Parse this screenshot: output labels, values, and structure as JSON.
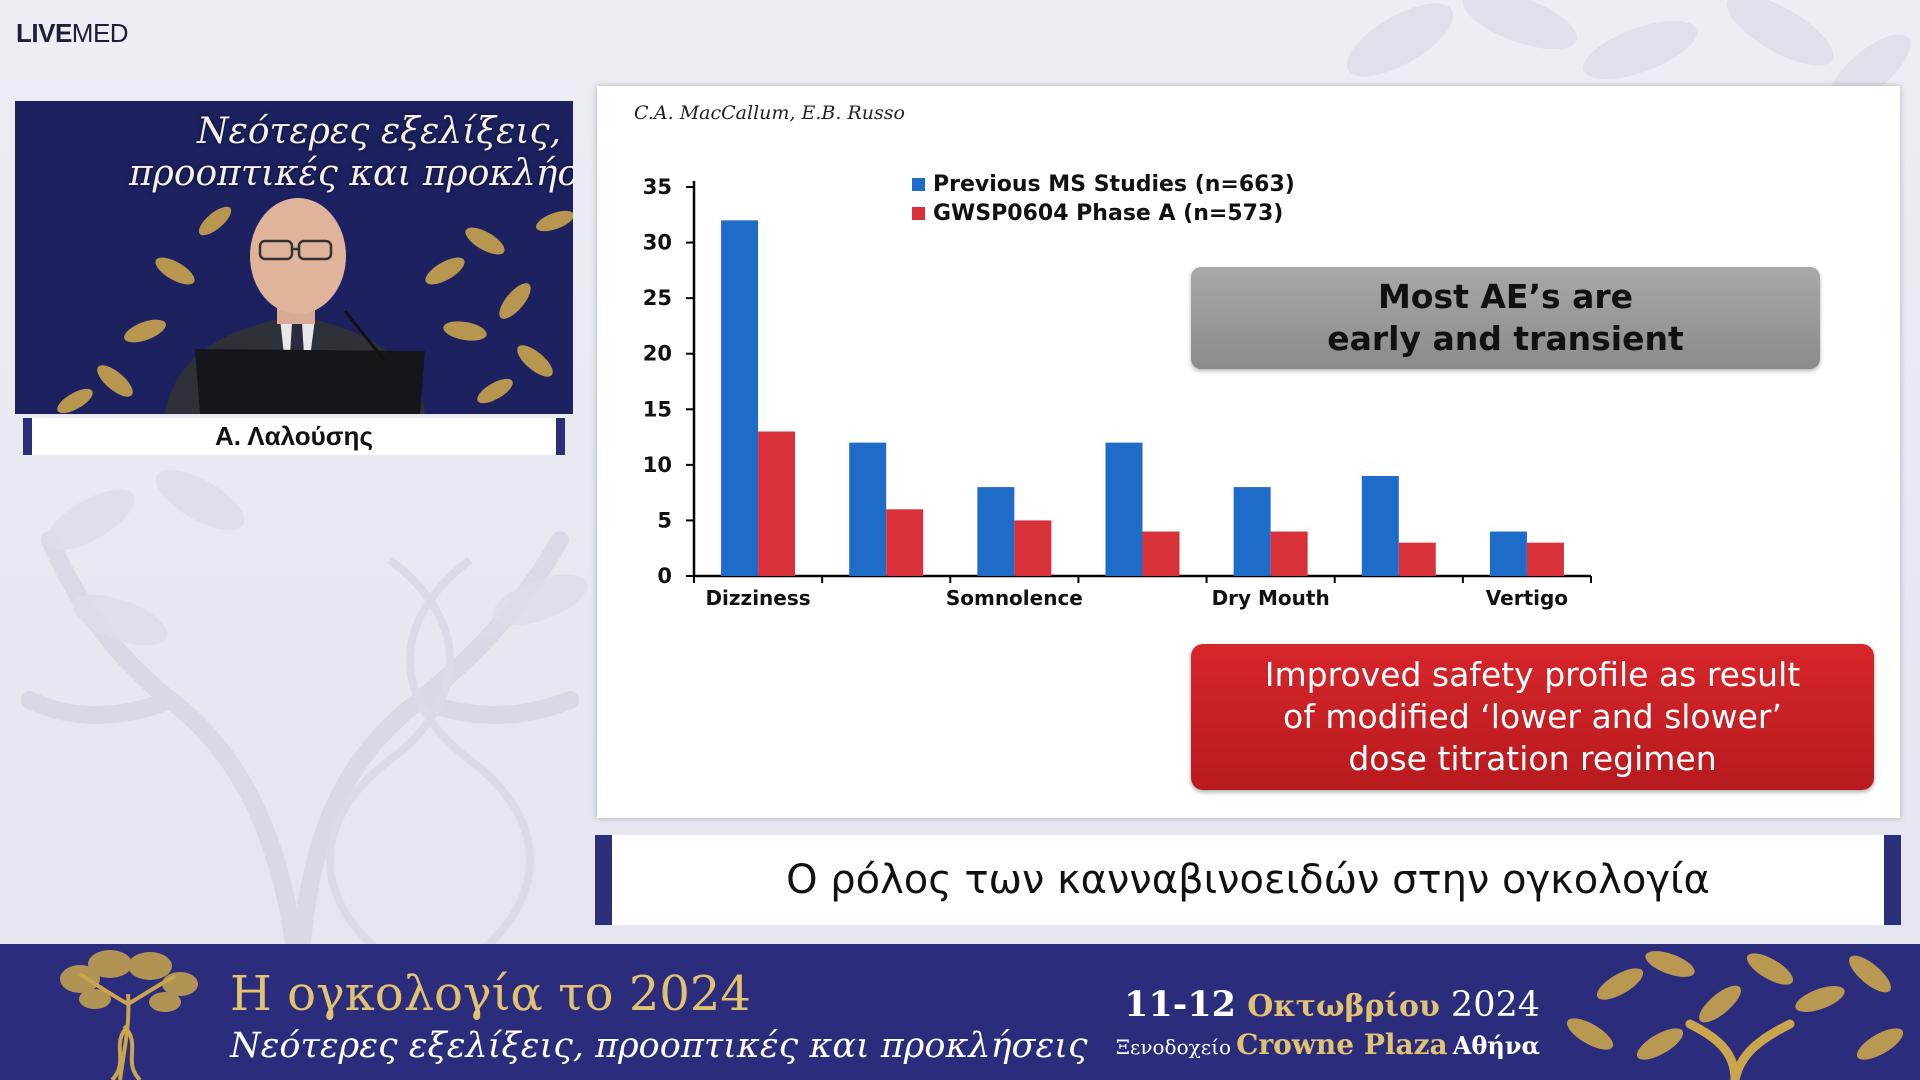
{
  "logo": {
    "live": "LIVE",
    "med": "MED"
  },
  "video": {
    "line1": "Νεότερες εξελίξεις,",
    "line2": "προοπτικές και προκλήσεις"
  },
  "speaker": {
    "name": "Α. Λαλούσης"
  },
  "slide": {
    "author": "C.A. MacCallum, E.B. Russo",
    "callout_gray": [
      "Most AE’s are",
      "early and transient"
    ],
    "callout_red": [
      "Improved safety profile as result",
      "of modified ‘lower and slower’",
      "dose titration regimen"
    ]
  },
  "chart_data": {
    "type": "bar",
    "title": "",
    "xlabel": "",
    "ylabel": "",
    "ylim": [
      0,
      35
    ],
    "yticks": [
      0,
      5,
      10,
      15,
      20,
      25,
      30,
      35
    ],
    "categories": [
      "Dizziness",
      "",
      "Somnolence",
      "",
      "Dry Mouth",
      "",
      "Vertigo"
    ],
    "series": [
      {
        "name": "Previous MS Studies (n=663)",
        "color": "#1f6cc8",
        "values": [
          32,
          12,
          8,
          12,
          8,
          9,
          4
        ]
      },
      {
        "name": "GWSP0604 Phase A (n=573)",
        "color": "#d8313a",
        "values": [
          13,
          6,
          5,
          4,
          4,
          3,
          3
        ]
      }
    ],
    "legend_position": "top"
  },
  "title_bar": {
    "text": "Ο ρόλος των κανναβινοειδών στην ογκολογία"
  },
  "footer": {
    "title": "Η ογκολογία το 2024",
    "subtitle": "Νεότερες εξελίξεις, προοπτικές και προκλήσεις",
    "date_days": "11-12",
    "date_month": "Οκτωβρίου",
    "date_year": "2024",
    "venue_prefix": "Ξενοδοχείο",
    "venue_hotel": "Crowne Plaza",
    "venue_city": "Αθήνα"
  },
  "colors": {
    "navy": "#2b2d7c",
    "gold": "#e1c271",
    "blue_bar": "#1f6cc8",
    "red_bar": "#d8313a"
  }
}
